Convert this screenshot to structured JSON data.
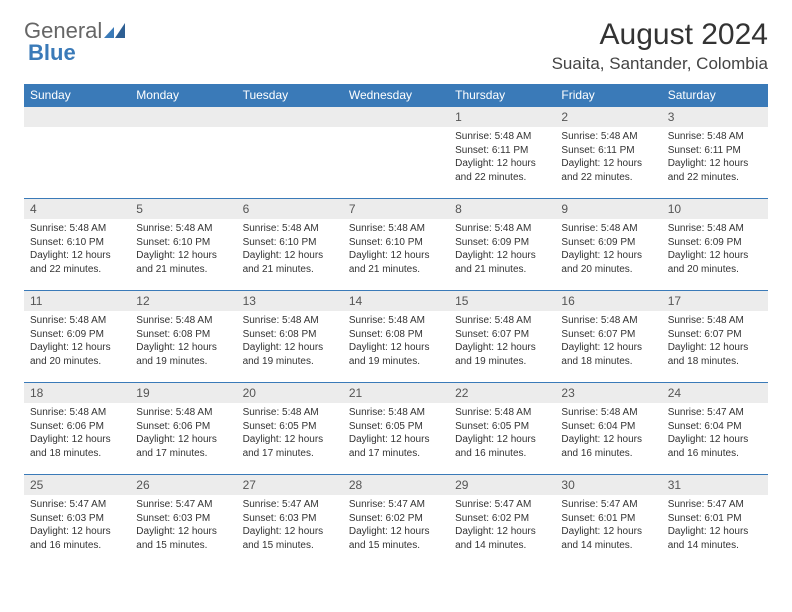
{
  "logo": {
    "part1": "General",
    "part2": "Blue"
  },
  "header": {
    "title": "August 2024",
    "location": "Suaita, Santander, Colombia"
  },
  "colors": {
    "header_bg": "#3a7ab8",
    "header_fg": "#ffffff",
    "daynum_bg": "#ececec",
    "border": "#3a7ab8",
    "text": "#333333"
  },
  "typography": {
    "title_fontsize": 30,
    "location_fontsize": 17,
    "dayheader_fontsize": 12,
    "daynum_fontsize": 12,
    "body_fontsize": 10
  },
  "day_labels": [
    "Sunday",
    "Monday",
    "Tuesday",
    "Wednesday",
    "Thursday",
    "Friday",
    "Saturday"
  ],
  "weeks": [
    [
      null,
      null,
      null,
      null,
      {
        "n": "1",
        "sunrise": "5:48 AM",
        "sunset": "6:11 PM",
        "daylight": "12 hours and 22 minutes."
      },
      {
        "n": "2",
        "sunrise": "5:48 AM",
        "sunset": "6:11 PM",
        "daylight": "12 hours and 22 minutes."
      },
      {
        "n": "3",
        "sunrise": "5:48 AM",
        "sunset": "6:11 PM",
        "daylight": "12 hours and 22 minutes."
      }
    ],
    [
      {
        "n": "4",
        "sunrise": "5:48 AM",
        "sunset": "6:10 PM",
        "daylight": "12 hours and 22 minutes."
      },
      {
        "n": "5",
        "sunrise": "5:48 AM",
        "sunset": "6:10 PM",
        "daylight": "12 hours and 21 minutes."
      },
      {
        "n": "6",
        "sunrise": "5:48 AM",
        "sunset": "6:10 PM",
        "daylight": "12 hours and 21 minutes."
      },
      {
        "n": "7",
        "sunrise": "5:48 AM",
        "sunset": "6:10 PM",
        "daylight": "12 hours and 21 minutes."
      },
      {
        "n": "8",
        "sunrise": "5:48 AM",
        "sunset": "6:09 PM",
        "daylight": "12 hours and 21 minutes."
      },
      {
        "n": "9",
        "sunrise": "5:48 AM",
        "sunset": "6:09 PM",
        "daylight": "12 hours and 20 minutes."
      },
      {
        "n": "10",
        "sunrise": "5:48 AM",
        "sunset": "6:09 PM",
        "daylight": "12 hours and 20 minutes."
      }
    ],
    [
      {
        "n": "11",
        "sunrise": "5:48 AM",
        "sunset": "6:09 PM",
        "daylight": "12 hours and 20 minutes."
      },
      {
        "n": "12",
        "sunrise": "5:48 AM",
        "sunset": "6:08 PM",
        "daylight": "12 hours and 19 minutes."
      },
      {
        "n": "13",
        "sunrise": "5:48 AM",
        "sunset": "6:08 PM",
        "daylight": "12 hours and 19 minutes."
      },
      {
        "n": "14",
        "sunrise": "5:48 AM",
        "sunset": "6:08 PM",
        "daylight": "12 hours and 19 minutes."
      },
      {
        "n": "15",
        "sunrise": "5:48 AM",
        "sunset": "6:07 PM",
        "daylight": "12 hours and 19 minutes."
      },
      {
        "n": "16",
        "sunrise": "5:48 AM",
        "sunset": "6:07 PM",
        "daylight": "12 hours and 18 minutes."
      },
      {
        "n": "17",
        "sunrise": "5:48 AM",
        "sunset": "6:07 PM",
        "daylight": "12 hours and 18 minutes."
      }
    ],
    [
      {
        "n": "18",
        "sunrise": "5:48 AM",
        "sunset": "6:06 PM",
        "daylight": "12 hours and 18 minutes."
      },
      {
        "n": "19",
        "sunrise": "5:48 AM",
        "sunset": "6:06 PM",
        "daylight": "12 hours and 17 minutes."
      },
      {
        "n": "20",
        "sunrise": "5:48 AM",
        "sunset": "6:05 PM",
        "daylight": "12 hours and 17 minutes."
      },
      {
        "n": "21",
        "sunrise": "5:48 AM",
        "sunset": "6:05 PM",
        "daylight": "12 hours and 17 minutes."
      },
      {
        "n": "22",
        "sunrise": "5:48 AM",
        "sunset": "6:05 PM",
        "daylight": "12 hours and 16 minutes."
      },
      {
        "n": "23",
        "sunrise": "5:48 AM",
        "sunset": "6:04 PM",
        "daylight": "12 hours and 16 minutes."
      },
      {
        "n": "24",
        "sunrise": "5:47 AM",
        "sunset": "6:04 PM",
        "daylight": "12 hours and 16 minutes."
      }
    ],
    [
      {
        "n": "25",
        "sunrise": "5:47 AM",
        "sunset": "6:03 PM",
        "daylight": "12 hours and 16 minutes."
      },
      {
        "n": "26",
        "sunrise": "5:47 AM",
        "sunset": "6:03 PM",
        "daylight": "12 hours and 15 minutes."
      },
      {
        "n": "27",
        "sunrise": "5:47 AM",
        "sunset": "6:03 PM",
        "daylight": "12 hours and 15 minutes."
      },
      {
        "n": "28",
        "sunrise": "5:47 AM",
        "sunset": "6:02 PM",
        "daylight": "12 hours and 15 minutes."
      },
      {
        "n": "29",
        "sunrise": "5:47 AM",
        "sunset": "6:02 PM",
        "daylight": "12 hours and 14 minutes."
      },
      {
        "n": "30",
        "sunrise": "5:47 AM",
        "sunset": "6:01 PM",
        "daylight": "12 hours and 14 minutes."
      },
      {
        "n": "31",
        "sunrise": "5:47 AM",
        "sunset": "6:01 PM",
        "daylight": "12 hours and 14 minutes."
      }
    ]
  ],
  "labels": {
    "sunrise_prefix": "Sunrise: ",
    "sunset_prefix": "Sunset: ",
    "daylight_prefix": "Daylight: "
  }
}
